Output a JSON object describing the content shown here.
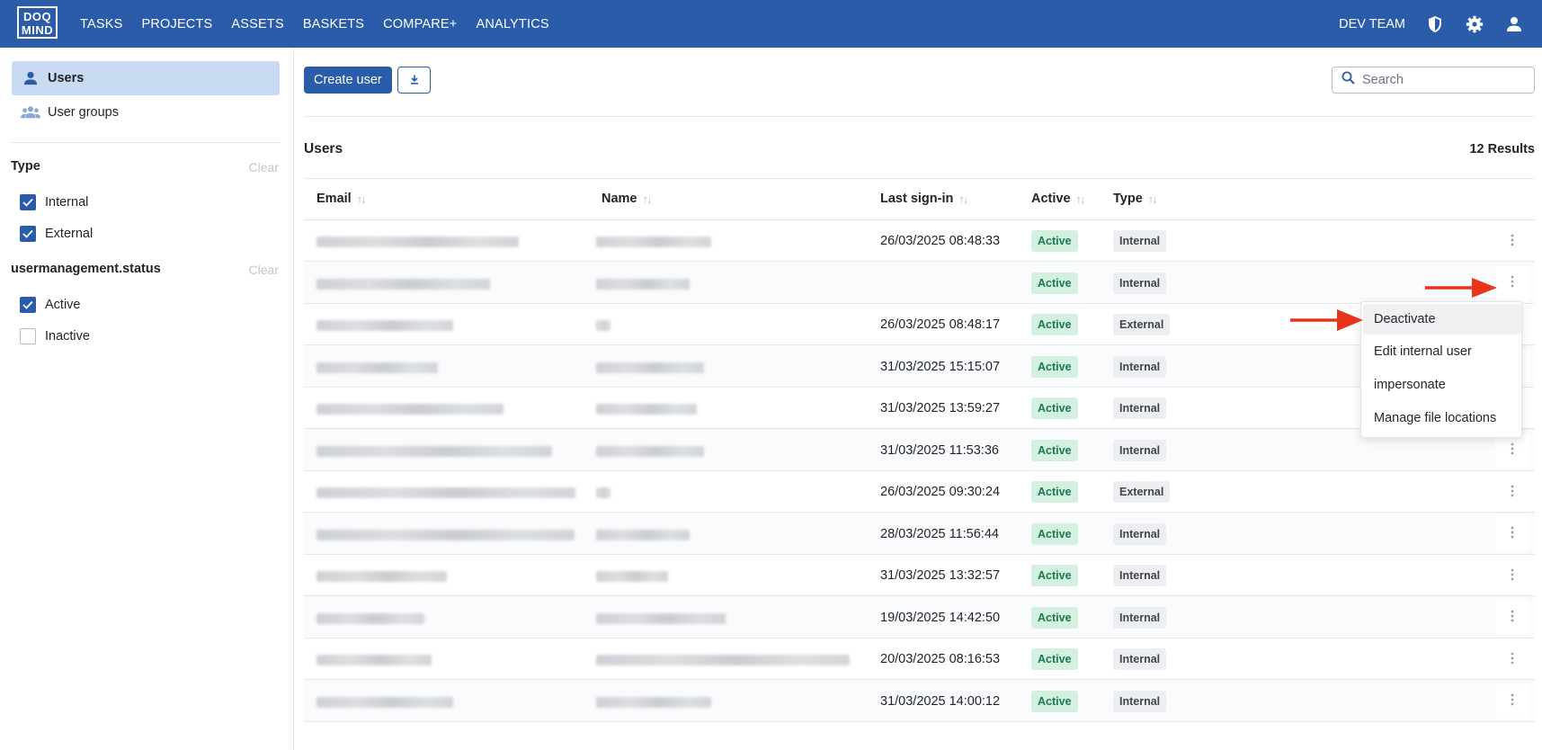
{
  "app": {
    "logo_line1": "DOQ",
    "logo_line2": "MIND"
  },
  "nav": [
    "TASKS",
    "PROJECTS",
    "ASSETS",
    "BASKETS",
    "COMPARE+",
    "ANALYTICS"
  ],
  "topbar": {
    "team": "DEV TEAM",
    "icons": [
      "shield-icon",
      "gear-icon",
      "user-icon"
    ]
  },
  "sidebar": {
    "items": [
      {
        "label": "Users",
        "icon": "user-icon",
        "active": true
      },
      {
        "label": "User groups",
        "icon": "users-icon",
        "active": false
      }
    ],
    "filters": [
      {
        "title": "Type",
        "clear": "Clear",
        "options": [
          {
            "label": "Internal",
            "checked": true
          },
          {
            "label": "External",
            "checked": true
          }
        ]
      },
      {
        "title": "usermanagement.status",
        "clear": "Clear",
        "options": [
          {
            "label": "Active",
            "checked": true
          },
          {
            "label": "Inactive",
            "checked": false
          }
        ]
      }
    ]
  },
  "toolbar": {
    "create_label": "Create user",
    "export_icon": "download-icon",
    "search_placeholder": "Search"
  },
  "section": {
    "title": "Users",
    "results": "12 Results"
  },
  "table": {
    "columns": [
      "Email",
      "Name",
      "Last sign-in",
      "Active",
      "Type"
    ],
    "rows": [
      {
        "last_sign_in": "26/03/2025 08:48:33",
        "active": "Active",
        "type": "Internal"
      },
      {
        "last_sign_in": "",
        "active": "Active",
        "type": "Internal"
      },
      {
        "last_sign_in": "26/03/2025 08:48:17",
        "active": "Active",
        "type": "External"
      },
      {
        "last_sign_in": "31/03/2025 15:15:07",
        "active": "Active",
        "type": "Internal"
      },
      {
        "last_sign_in": "31/03/2025 13:59:27",
        "active": "Active",
        "type": "Internal"
      },
      {
        "last_sign_in": "31/03/2025 11:53:36",
        "active": "Active",
        "type": "Internal"
      },
      {
        "last_sign_in": "26/03/2025 09:30:24",
        "active": "Active",
        "type": "External"
      },
      {
        "last_sign_in": "28/03/2025 11:56:44",
        "active": "Active",
        "type": "Internal"
      },
      {
        "last_sign_in": "31/03/2025 13:32:57",
        "active": "Active",
        "type": "Internal"
      },
      {
        "last_sign_in": "19/03/2025 14:42:50",
        "active": "Active",
        "type": "Internal"
      },
      {
        "last_sign_in": "20/03/2025 08:16:53",
        "active": "Active",
        "type": "Internal"
      },
      {
        "last_sign_in": "31/03/2025 14:00:12",
        "active": "Active",
        "type": "Internal"
      }
    ]
  },
  "context_menu": {
    "items": [
      "Deactivate",
      "Edit internal user",
      "impersonate",
      "Manage file locations"
    ],
    "highlighted": "Deactivate"
  },
  "colors": {
    "brand": "#2a5caa",
    "active_badge_bg": "#d3f0e1",
    "active_badge_text": "#1a7a4b",
    "arrow": "#e8341c"
  }
}
